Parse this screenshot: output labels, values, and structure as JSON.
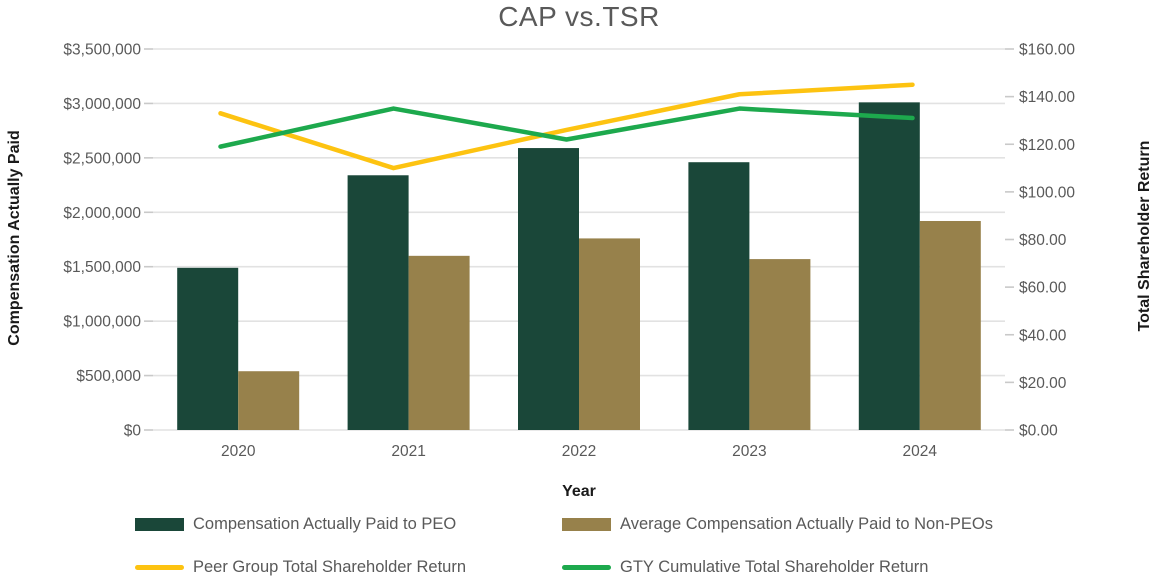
{
  "chart": {
    "title": "CAP vs.TSR",
    "x_axis": {
      "title": "Year"
    },
    "left_axis": {
      "title": "Compensation Actually Paid",
      "min": 0,
      "max": 3500000,
      "tick_labels": [
        "$0",
        "$500,000",
        "$1,000,000",
        "$1,500,000",
        "$2,000,000",
        "$2,500,000",
        "$3,000,000",
        "$3,500,000"
      ]
    },
    "right_axis": {
      "title": "Total Shareholder Return",
      "min": 0,
      "max": 160,
      "tick_labels": [
        "$0.00",
        "$20.00",
        "$40.00",
        "$60.00",
        "$80.00",
        "$100.00",
        "$120.00",
        "$140.00",
        "$160.00"
      ]
    },
    "colors": {
      "peo_bar": "#1A4739",
      "non_peo_bar": "#97814B",
      "peer_group_line": "#FDC311",
      "gty_line": "#1DA94D",
      "gridline": "#E2E2E2",
      "tick": "#C9C9C9",
      "tick_text": "#595959",
      "title_text": "#595959",
      "axis_title_text": "#1A1A1A"
    }
  },
  "chart_data": {
    "type": "combo-bar-line",
    "title": "CAP vs.TSR",
    "xlabel": "Year",
    "ylabel_left": "Compensation Actually Paid",
    "ylabel_right": "Total Shareholder Return",
    "ylim_left": [
      0,
      3500000
    ],
    "ylim_right": [
      0,
      160
    ],
    "grid": "horizontal",
    "legend_position": "bottom",
    "categories": [
      "2020",
      "2021",
      "2022",
      "2023",
      "2024"
    ],
    "series": [
      {
        "name": "Compensation Actually Paid to PEO",
        "type": "bar",
        "axis": "left",
        "color": "#1A4739",
        "values": [
          1490000,
          2340000,
          2590000,
          2460000,
          3010000
        ]
      },
      {
        "name": "Average Compensation Actually Paid to Non-PEOs",
        "type": "bar",
        "axis": "left",
        "color": "#97814B",
        "values": [
          540000,
          1600000,
          1760000,
          1570000,
          1920000
        ]
      },
      {
        "name": "Peer Group Total Shareholder Return",
        "type": "line",
        "axis": "right",
        "color": "#FDC311",
        "values": [
          133,
          110,
          126,
          141,
          145
        ]
      },
      {
        "name": "GTY Cumulative Total Shareholder Return",
        "type": "line",
        "axis": "right",
        "color": "#1DA94D",
        "values": [
          119,
          135,
          122,
          135,
          131
        ]
      }
    ]
  }
}
